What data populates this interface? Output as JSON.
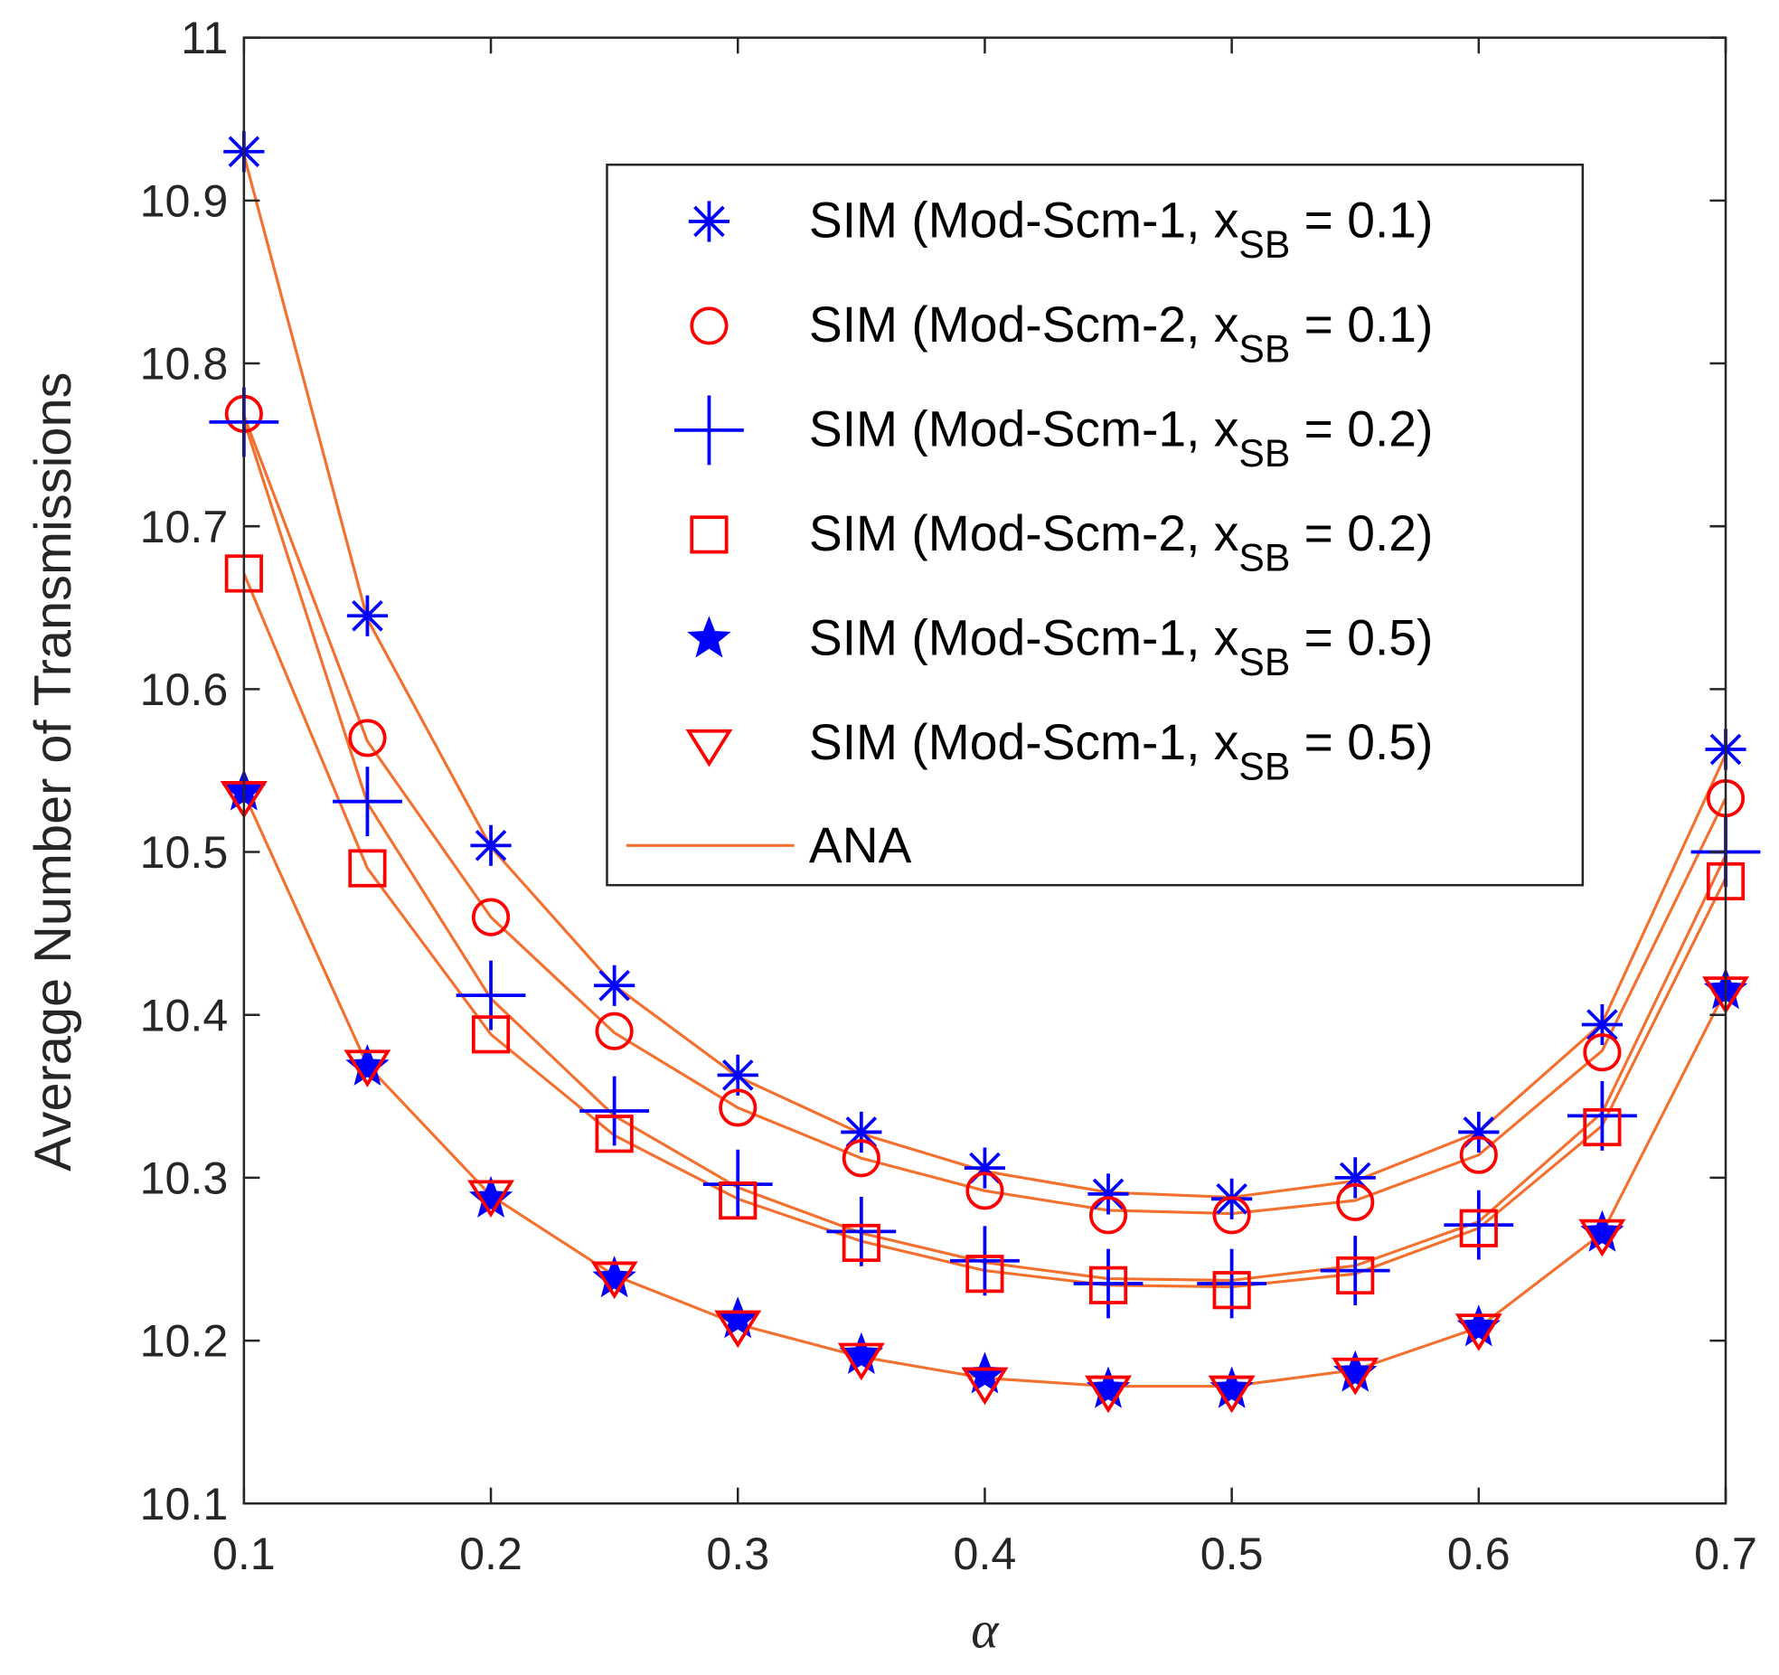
{
  "chart_data": {
    "type": "line",
    "xlabel": "α",
    "ylabel": "Average Number of Transmissions",
    "xlim": [
      0.1,
      0.7
    ],
    "ylim": [
      10.1,
      11
    ],
    "xticks": [
      "0.1",
      "0.2",
      "0.3",
      "0.4",
      "0.5",
      "0.6",
      "0.7"
    ],
    "yticks": [
      "10.1",
      "10.2",
      "10.3",
      "10.4",
      "10.5",
      "10.6",
      "10.7",
      "10.8",
      "10.9",
      "11"
    ],
    "grid": false,
    "legend_position": "top-right",
    "x": [
      0.1,
      0.15,
      0.2,
      0.25,
      0.3,
      0.35,
      0.4,
      0.45,
      0.5,
      0.55,
      0.6,
      0.65,
      0.7
    ],
    "series": [
      {
        "name": "SIM (Mod-Scm-1, xSB = 0.1)",
        "legend": {
          "prefix": "SIM (Mod-Scm-1, x",
          "sub": "SB",
          "suffix": " = 0.1)"
        },
        "marker": "asterisk",
        "color": "#0000FF",
        "values": [
          10.93,
          10.645,
          10.504,
          10.418,
          10.363,
          10.328,
          10.306,
          10.29,
          10.287,
          10.3,
          10.328,
          10.394,
          10.563
        ]
      },
      {
        "name": "SIM (Mod-Scm-2, xSB = 0.1)",
        "legend": {
          "prefix": "SIM (Mod-Scm-2, x",
          "sub": "SB",
          "suffix": " = 0.1)"
        },
        "marker": "circle",
        "color": "#FF0000",
        "values": [
          10.769,
          10.57,
          10.46,
          10.39,
          10.343,
          10.312,
          10.292,
          10.277,
          10.277,
          10.285,
          10.314,
          10.377,
          10.533
        ]
      },
      {
        "name": "SIM (Mod-Scm-1, xSB = 0.2)",
        "legend": {
          "prefix": "SIM (Mod-Scm-1, x",
          "sub": "SB",
          "suffix": " = 0.2)"
        },
        "marker": "plus",
        "color": "#0000FF",
        "values": [
          10.764,
          10.531,
          10.412,
          10.341,
          10.296,
          10.267,
          10.249,
          10.235,
          10.235,
          10.243,
          10.271,
          10.338,
          10.5
        ]
      },
      {
        "name": "SIM (Mod-Scm-2, xSB = 0.2)",
        "legend": {
          "prefix": "SIM (Mod-Scm-2, x",
          "sub": "SB",
          "suffix": " = 0.2)"
        },
        "marker": "square",
        "color": "#FF0000",
        "values": [
          10.671,
          10.49,
          10.388,
          10.327,
          10.286,
          10.26,
          10.241,
          10.234,
          10.231,
          10.24,
          10.269,
          10.331,
          10.482
        ]
      },
      {
        "name": "SIM (Mod-Scm-1, xSB = 0.5)",
        "legend": {
          "prefix": "SIM (Mod-Scm-1, x",
          "sub": "SB",
          "suffix": " = 0.5)"
        },
        "marker": "star",
        "color": "#0000FF",
        "values": [
          10.537,
          10.368,
          10.287,
          10.238,
          10.213,
          10.191,
          10.179,
          10.17,
          10.17,
          10.18,
          10.208,
          10.266,
          10.415
        ]
      },
      {
        "name": "SIM (Mod-Scm-1, xSB = 0.5)",
        "legend": {
          "prefix": "SIM (Mod-Scm-1, x",
          "sub": "SB",
          "suffix": " = 0.5)"
        },
        "marker": "triangle-down",
        "color": "#FF0000",
        "values": [
          10.535,
          10.37,
          10.29,
          10.24,
          10.21,
          10.19,
          10.175,
          10.17,
          10.17,
          10.181,
          10.208,
          10.266,
          10.415
        ]
      }
    ],
    "ana": {
      "name": "ANA",
      "color": "#F4702F",
      "curves": [
        [
          10.928,
          10.643,
          10.503,
          10.418,
          10.362,
          10.327,
          10.304,
          10.291,
          10.288,
          10.298,
          10.328,
          10.395,
          10.56
        ],
        [
          10.768,
          10.568,
          10.46,
          10.389,
          10.343,
          10.312,
          10.292,
          10.28,
          10.278,
          10.286,
          10.314,
          10.378,
          10.533
        ],
        [
          10.765,
          10.53,
          10.41,
          10.338,
          10.294,
          10.266,
          10.248,
          10.238,
          10.237,
          10.246,
          10.273,
          10.34,
          10.498
        ],
        [
          10.671,
          10.49,
          10.388,
          10.326,
          10.287,
          10.261,
          10.243,
          10.234,
          10.233,
          10.241,
          10.269,
          10.332,
          10.484
        ],
        [
          10.536,
          10.369,
          10.289,
          10.24,
          10.21,
          10.19,
          10.177,
          10.172,
          10.172,
          10.182,
          10.208,
          10.266,
          10.415
        ]
      ]
    }
  }
}
